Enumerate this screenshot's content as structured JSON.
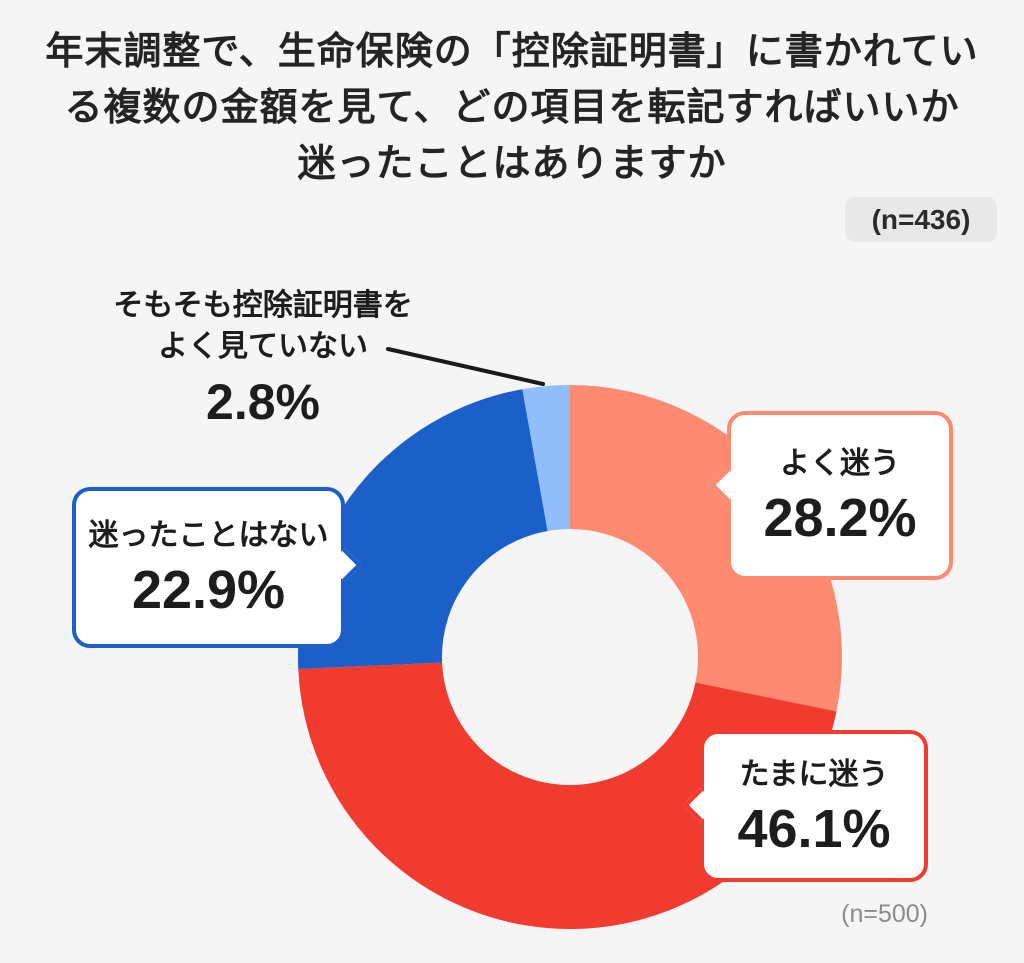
{
  "header": {
    "sample_badge": "(n=436)"
  },
  "footnote": "(n=500)",
  "chart_data": {
    "type": "pie",
    "subtype": "donut",
    "title": "年末調整で、生命保険の「控除証明書」に書かれている複数の金額を見て、どの項目を転記すればいいか迷ったことはありますか",
    "title_lines": [
      "年末調整で、生命保険の「控除証明書」に書かれてい",
      "る複数の金額を見て、どの項目を転記すればいいか",
      "迷ったことはありますか"
    ],
    "unit": "%",
    "start_angle": "top",
    "direction": "clockwise",
    "inner_radius_ratio": 0.47,
    "legend_position": "callout-bubbles",
    "background_color": "#F5F5F5",
    "segments": [
      {
        "label": "よく迷う",
        "value": 28.2,
        "color": "#FD8A71",
        "callout": "bubble-right"
      },
      {
        "label": "たまに迷う",
        "value": 46.1,
        "color": "#F03B2E",
        "callout": "bubble-right"
      },
      {
        "label": "迷ったことはない",
        "value": 22.9,
        "color": "#1A60C8",
        "callout": "bubble-left"
      },
      {
        "label": "そもそも控除証明書をよく見ていない",
        "label_line1": "そもそも控除証明書を",
        "label_line2": "よく見ていない",
        "value": 2.8,
        "color": "#91BDFB",
        "callout": "leader-line"
      }
    ],
    "leader_line_color": "#1A1A1A"
  }
}
